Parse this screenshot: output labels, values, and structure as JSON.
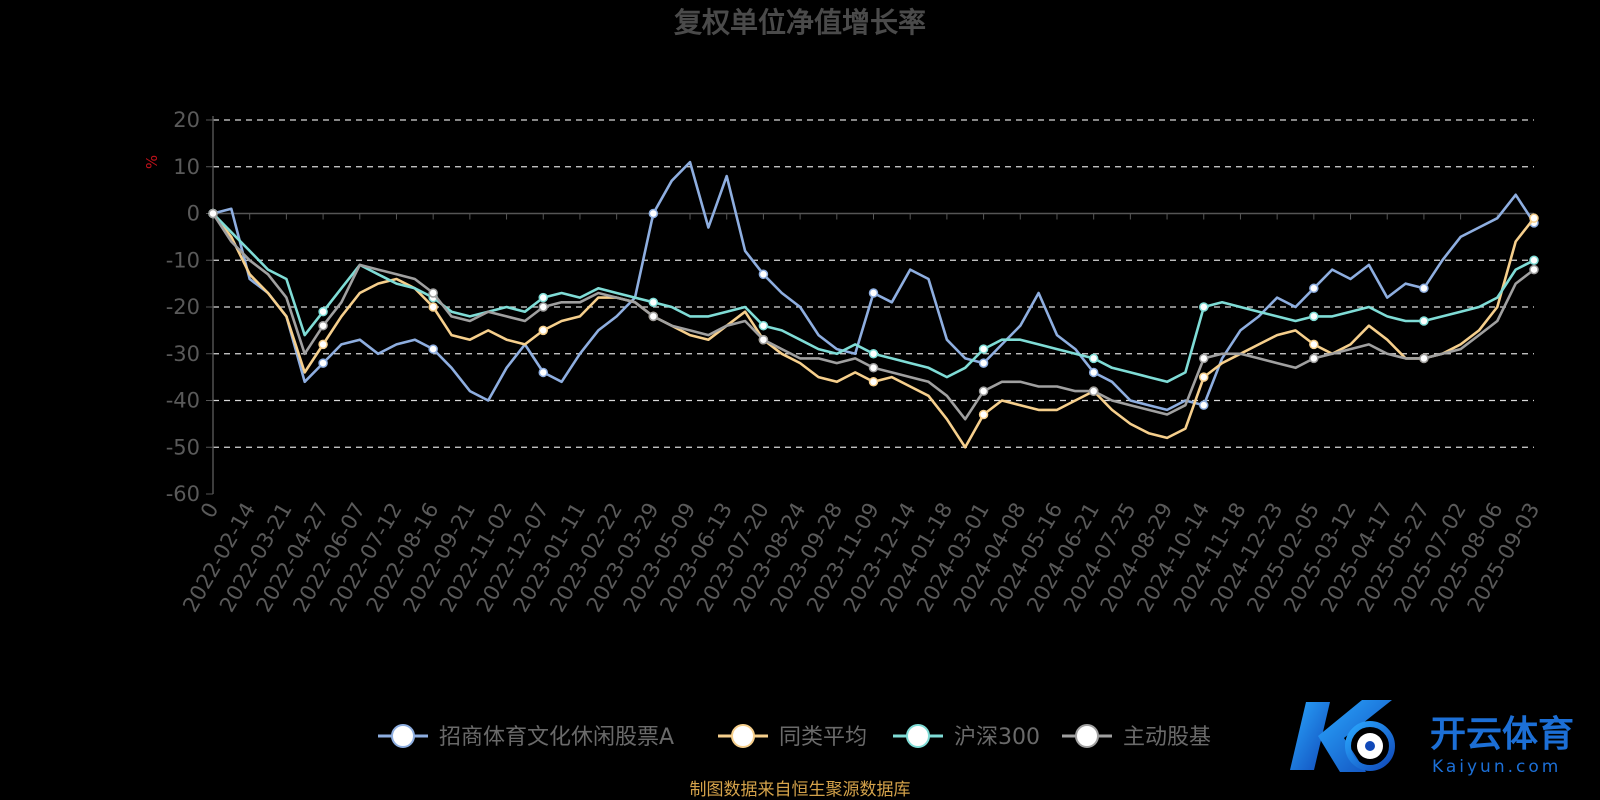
{
  "chart_data": {
    "type": "line",
    "title": "复权单位净值增长率",
    "ylabel": "%",
    "ylim": [
      -60,
      20
    ],
    "yticks": [
      20,
      10,
      0,
      -10,
      -20,
      -30,
      -40,
      -50,
      -60
    ],
    "x_tick_labels": [
      "0",
      "2022-02-14",
      "2022-03-21",
      "2022-04-27",
      "2022-06-07",
      "2022-07-12",
      "2022-08-16",
      "2022-09-21",
      "2022-11-02",
      "2022-12-07",
      "2023-01-11",
      "2023-02-22",
      "2023-03-29",
      "2023-05-09",
      "2023-06-13",
      "2023-07-20",
      "2023-08-24",
      "2023-09-28",
      "2023-11-09",
      "2023-12-14",
      "2024-01-18",
      "2024-03-01",
      "2024-04-08",
      "2024-05-16",
      "2024-06-21",
      "2024-07-25",
      "2024-08-29",
      "2024-10-14",
      "2024-11-18",
      "2024-12-23",
      "2025-02-05",
      "2025-03-12",
      "2025-04-17",
      "2025-05-27",
      "2025-07-02",
      "2025-08-06",
      "2025-09-03"
    ],
    "grid": true,
    "legend_position": "bottom",
    "series": [
      {
        "name": "招商体育文化休闲股票A",
        "color": "#8eaee0",
        "values": [
          0,
          1,
          -14,
          -17,
          -22,
          -36,
          -32,
          -28,
          -27,
          -30,
          -28,
          -27,
          -29,
          -33,
          -38,
          -40,
          -33,
          -28,
          -34,
          -36,
          -30,
          -25,
          -22,
          -18,
          0,
          7,
          11,
          -3,
          8,
          -8,
          -13,
          -17,
          -20,
          -26,
          -29,
          -30,
          -17,
          -19,
          -12,
          -14,
          -27,
          -31,
          -32,
          -28,
          -24,
          -17,
          -26,
          -29,
          -34,
          -36,
          -40,
          -41,
          -42,
          -40,
          -41,
          -31,
          -25,
          -22,
          -18,
          -20,
          -16,
          -12,
          -14,
          -11,
          -18,
          -15,
          -16,
          -10,
          -5,
          -3,
          -1,
          4,
          -2
        ]
      },
      {
        "name": "同类平均",
        "color": "#f6cf8c",
        "values": [
          0,
          -5,
          -13,
          -17,
          -22,
          -34,
          -28,
          -22,
          -17,
          -15,
          -14,
          -16,
          -20,
          -26,
          -27,
          -25,
          -27,
          -28,
          -25,
          -23,
          -22,
          -18,
          -18,
          -19,
          -22,
          -24,
          -26,
          -27,
          -24,
          -21,
          -27,
          -30,
          -32,
          -35,
          -36,
          -34,
          -36,
          -35,
          -37,
          -39,
          -44,
          -50,
          -43,
          -40,
          -41,
          -42,
          -42,
          -40,
          -38,
          -42,
          -45,
          -47,
          -48,
          -46,
          -35,
          -32,
          -30,
          -28,
          -26,
          -25,
          -28,
          -30,
          -28,
          -24,
          -27,
          -31,
          -31,
          -30,
          -28,
          -25,
          -20,
          -6,
          -1
        ]
      },
      {
        "name": "沪深300",
        "color": "#7fdcd6",
        "values": [
          0,
          -4,
          -8,
          -12,
          -14,
          -26,
          -21,
          -16,
          -11,
          -13,
          -15,
          -16,
          -18,
          -21,
          -22,
          -21,
          -20,
          -21,
          -18,
          -17,
          -18,
          -16,
          -17,
          -18,
          -19,
          -20,
          -22,
          -22,
          -21,
          -20,
          -24,
          -25,
          -27,
          -29,
          -30,
          -28,
          -30,
          -31,
          -32,
          -33,
          -35,
          -33,
          -29,
          -27,
          -27,
          -28,
          -29,
          -30,
          -31,
          -33,
          -34,
          -35,
          -36,
          -34,
          -20,
          -19,
          -20,
          -21,
          -22,
          -23,
          -22,
          -22,
          -21,
          -20,
          -22,
          -23,
          -23,
          -22,
          -21,
          -20,
          -18,
          -12,
          -10
        ]
      },
      {
        "name": "主动股基",
        "color": "#a0a0a0",
        "values": [
          0,
          -6,
          -10,
          -13,
          -18,
          -30,
          -24,
          -19,
          -11,
          -12,
          -13,
          -14,
          -17,
          -22,
          -23,
          -21,
          -22,
          -23,
          -20,
          -19,
          -19,
          -17,
          -18,
          -19,
          -22,
          -24,
          -25,
          -26,
          -24,
          -23,
          -27,
          -29,
          -31,
          -31,
          -32,
          -31,
          -33,
          -34,
          -35,
          -36,
          -39,
          -44,
          -38,
          -36,
          -36,
          -37,
          -37,
          -38,
          -38,
          -40,
          -41,
          -42,
          -43,
          -41,
          -31,
          -30,
          -30,
          -31,
          -32,
          -33,
          -31,
          -30,
          -29,
          -28,
          -30,
          -31,
          -31,
          -30,
          -29,
          -26,
          -23,
          -15,
          -12
        ]
      }
    ]
  },
  "source_text": "制图数据来自恒生聚源数据库",
  "logo": {
    "icon": "kaiyun-k-ball-icon",
    "cn": "开云体育",
    "en": "Kaiyun.com"
  }
}
